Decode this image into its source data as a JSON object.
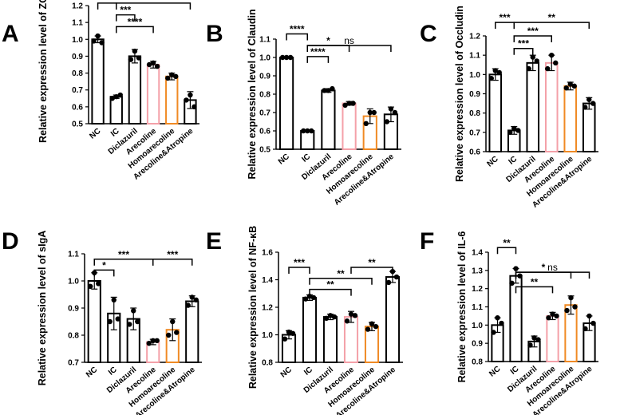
{
  "colors": {
    "default": "#000000",
    "pink": "#f4a0a8",
    "orange": "#f08a24",
    "point": "#000000"
  },
  "chart_data": [
    {
      "type": "bar",
      "letter": "A",
      "ylabel": "Relative expression level of ZO-1",
      "categories": [
        "NC",
        "IC",
        "Diclazuril",
        "Arecoline",
        "Homoarecoline",
        "Arecoline&Atropine"
      ],
      "bar_colors": [
        "default",
        "default",
        "default",
        "pink",
        "orange",
        "default"
      ],
      "values": [
        1.0,
        0.66,
        0.9,
        0.85,
        0.78,
        0.64
      ],
      "errors": [
        0.02,
        0.01,
        0.04,
        0.02,
        0.02,
        0.05
      ],
      "points": [
        [
          1.02,
          0.99,
          0.98
        ],
        [
          0.66,
          0.65,
          0.67
        ],
        [
          0.93,
          0.88,
          0.89
        ],
        [
          0.86,
          0.85,
          0.84
        ],
        [
          0.79,
          0.77,
          0.78
        ],
        [
          0.67,
          0.64,
          0.6
        ]
      ],
      "ylim": [
        0.5,
        1.2
      ],
      "yticks": [
        0.5,
        0.6,
        0.7,
        0.8,
        0.9,
        1.0,
        1.1,
        1.2
      ],
      "tick_decimals": 1,
      "annotations": [
        {
          "from": 0,
          "to": 1,
          "level": 1.215,
          "label": "****"
        },
        {
          "from": 1,
          "to": 2,
          "level": 1.145,
          "label": "***"
        },
        {
          "from": 1,
          "to": 3,
          "level": 1.075,
          "label": "****"
        },
        {
          "from": 1,
          "to": 5,
          "level": 1.215,
          "label": "**"
        }
      ]
    },
    {
      "type": "bar",
      "letter": "B",
      "ylabel": "Relative expression level of Claudin",
      "categories": [
        "NC",
        "IC",
        "Diclazuril",
        "Arecoline",
        "Homoarecoline",
        "Arecoline&Atropine"
      ],
      "bar_colors": [
        "default",
        "default",
        "default",
        "pink",
        "orange",
        "default"
      ],
      "values": [
        1.0,
        0.6,
        0.82,
        0.75,
        0.68,
        0.69
      ],
      "errors": [
        0.005,
        0.005,
        0.01,
        0.01,
        0.04,
        0.04
      ],
      "points": [
        [
          1.0,
          1.0,
          1.0
        ],
        [
          0.6,
          0.6,
          0.6
        ],
        [
          0.82,
          0.82,
          0.83
        ],
        [
          0.75,
          0.74,
          0.75
        ],
        [
          0.7,
          0.64,
          0.7
        ],
        [
          0.72,
          0.65,
          0.7
        ]
      ],
      "ylim": [
        0.5,
        1.1
      ],
      "yticks": [
        0.5,
        0.6,
        0.7,
        0.8,
        0.9,
        1.0,
        1.1
      ],
      "tick_decimals": 1,
      "annotations": [
        {
          "from": 0,
          "to": 1,
          "level": 1.128,
          "label": "****"
        },
        {
          "from": 1,
          "to": 2,
          "level": 1.005,
          "label": "****"
        },
        {
          "from": 1,
          "to": 3,
          "level": 1.065,
          "label": "*"
        },
        {
          "from": 1,
          "to": 5,
          "level": 1.065,
          "label": "ns"
        }
      ]
    },
    {
      "type": "bar",
      "letter": "C",
      "ylabel": "Relative expression level of Occludin",
      "categories": [
        "NC",
        "IC",
        "Diclazuril",
        "Arecoline",
        "Homoarecoline",
        "Arecoline&Atropine"
      ],
      "bar_colors": [
        "default",
        "default",
        "default",
        "pink",
        "orange",
        "default"
      ],
      "values": [
        1.0,
        0.71,
        1.06,
        1.06,
        0.94,
        0.85
      ],
      "errors": [
        0.03,
        0.02,
        0.04,
        0.04,
        0.02,
        0.03
      ],
      "points": [
        [
          1.02,
          0.98,
          1.01
        ],
        [
          0.72,
          0.7,
          0.71
        ],
        [
          1.09,
          1.03,
          1.07
        ],
        [
          1.1,
          1.03,
          1.06
        ],
        [
          0.95,
          0.93,
          0.94
        ],
        [
          0.87,
          0.83,
          0.85
        ]
      ],
      "ylim": [
        0.6,
        1.2
      ],
      "yticks": [
        0.6,
        0.7,
        0.8,
        0.9,
        1.0,
        1.1,
        1.2
      ],
      "tick_decimals": 1,
      "annotations": [
        {
          "from": 0,
          "to": 1,
          "level": 1.27,
          "label": "***"
        },
        {
          "from": 1,
          "to": 2,
          "level": 1.135,
          "label": "***"
        },
        {
          "from": 1,
          "to": 3,
          "level": 1.2,
          "label": "***"
        },
        {
          "from": 1,
          "to": 5,
          "level": 1.27,
          "label": "**"
        }
      ]
    },
    {
      "type": "bar",
      "letter": "D",
      "ylabel": "Relative expression level of sIgA",
      "categories": [
        "NC",
        "IC",
        "Diclazuril",
        "Arecoline",
        "Homoarecoline",
        "Arecoline&Atropine"
      ],
      "bar_colors": [
        "default",
        "default",
        "default",
        "pink",
        "orange",
        "default"
      ],
      "values": [
        1.0,
        0.88,
        0.86,
        0.775,
        0.82,
        0.925
      ],
      "errors": [
        0.03,
        0.06,
        0.04,
        0.01,
        0.04,
        0.02
      ],
      "points": [
        [
          1.03,
          0.98,
          0.99
        ],
        [
          0.93,
          0.85,
          0.86
        ],
        [
          0.89,
          0.84,
          0.85
        ],
        [
          0.78,
          0.77,
          0.78
        ],
        [
          0.85,
          0.8,
          0.81
        ],
        [
          0.94,
          0.91,
          0.93
        ]
      ],
      "ylim": [
        0.7,
        1.1
      ],
      "yticks": [
        0.7,
        0.8,
        0.9,
        1.0,
        1.1
      ],
      "tick_decimals": 1,
      "annotations": [
        {
          "from": 0,
          "to": 1,
          "level": 1.04,
          "label": "*"
        },
        {
          "from": 0,
          "to": 3,
          "level": 1.08,
          "label": "***"
        },
        {
          "from": 3,
          "to": 5,
          "level": 1.08,
          "label": "***"
        }
      ]
    },
    {
      "type": "bar",
      "letter": "E",
      "ylabel": "Relative expression level of NF-κB",
      "categories": [
        "NC",
        "IC",
        "Diclazuril",
        "Arecoline",
        "Homoarecoline",
        "Arecoline&Atropine"
      ],
      "bar_colors": [
        "default",
        "default",
        "default",
        "pink",
        "orange",
        "default"
      ],
      "values": [
        1.0,
        1.27,
        1.13,
        1.13,
        1.06,
        1.42
      ],
      "errors": [
        0.03,
        0.02,
        0.02,
        0.04,
        0.03,
        0.04
      ],
      "points": [
        [
          1.02,
          0.97,
          1.01
        ],
        [
          1.28,
          1.26,
          1.27
        ],
        [
          1.14,
          1.12,
          1.13
        ],
        [
          1.15,
          1.1,
          1.14
        ],
        [
          1.08,
          1.04,
          1.06
        ],
        [
          1.46,
          1.38,
          1.42
        ]
      ],
      "ylim": [
        0.8,
        1.6
      ],
      "yticks": [
        0.8,
        1.0,
        1.2,
        1.4,
        1.6
      ],
      "tick_decimals": 1,
      "annotations": [
        {
          "from": 0,
          "to": 1,
          "level": 1.49,
          "label": "***"
        },
        {
          "from": 1,
          "to": 3,
          "level": 1.33,
          "label": "**"
        },
        {
          "from": 1,
          "to": 4,
          "level": 1.41,
          "label": "**"
        },
        {
          "from": 3,
          "to": 5,
          "level": 1.49,
          "label": "**"
        }
      ]
    },
    {
      "type": "bar",
      "letter": "F",
      "ylabel": "Relative expression level of IL-6",
      "categories": [
        "NC",
        "IC",
        "Diclazuril",
        "Arecoline",
        "Homoarecoline",
        "Arecoline&Atropine"
      ],
      "bar_colors": [
        "default",
        "default",
        "default",
        "pink",
        "orange",
        "default"
      ],
      "values": [
        1.0,
        1.27,
        0.91,
        1.05,
        1.11,
        1.01
      ],
      "errors": [
        0.04,
        0.04,
        0.03,
        0.02,
        0.05,
        0.04
      ],
      "points": [
        [
          1.04,
          0.96,
          1.01
        ],
        [
          1.31,
          1.23,
          1.27
        ],
        [
          0.93,
          0.89,
          0.92
        ],
        [
          1.06,
          1.04,
          1.05
        ],
        [
          1.15,
          1.08,
          1.1
        ],
        [
          1.05,
          0.98,
          1.01
        ]
      ],
      "ylim": [
        0.8,
        1.4
      ],
      "yticks": [
        0.8,
        0.9,
        1.0,
        1.1,
        1.2,
        1.3,
        1.4
      ],
      "tick_decimals": 1,
      "annotations": [
        {
          "from": 0,
          "to": 1,
          "level": 1.425,
          "label": "**"
        },
        {
          "from": 1,
          "to": 3,
          "level": 1.21,
          "label": "**"
        },
        {
          "from": 1,
          "to": 4,
          "level": 1.29,
          "label": "*"
        },
        {
          "from": 1,
          "to": 5,
          "level": 1.29,
          "label": "ns"
        }
      ]
    }
  ]
}
